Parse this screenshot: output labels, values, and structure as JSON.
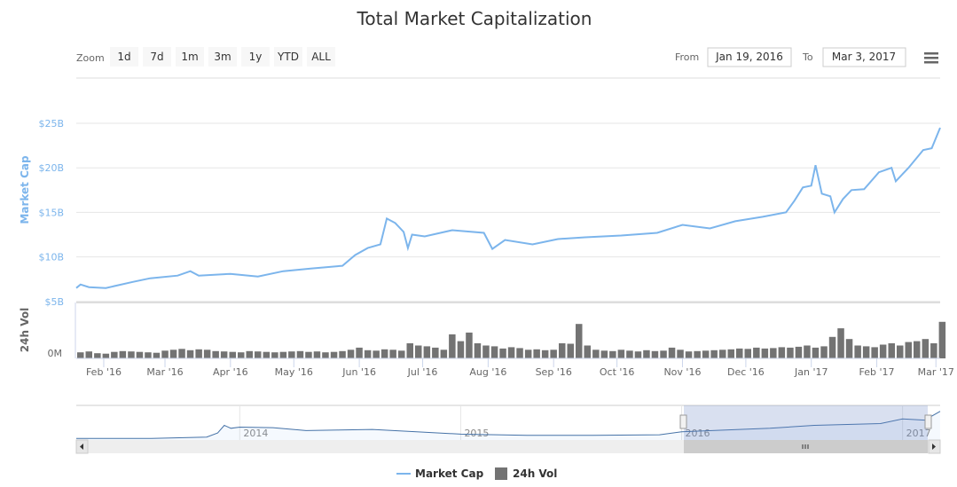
{
  "chart_data": {
    "type": "line",
    "title": "Total Market Capitalization",
    "zoom": {
      "label": "Zoom",
      "buttons": [
        "1d",
        "7d",
        "1m",
        "3m",
        "1y",
        "YTD",
        "ALL"
      ]
    },
    "range": {
      "from_label": "From",
      "from": "Jan 19, 2016",
      "to_label": "To",
      "to": "Mar 3, 2017"
    },
    "menu_icon": "hamburger-icon",
    "x_unit": "days since Jan 19, 2016",
    "x_range": [
      0,
      409
    ],
    "x_ticks": [
      {
        "day": 13,
        "label": "Feb '16"
      },
      {
        "day": 42,
        "label": "Mar '16"
      },
      {
        "day": 73,
        "label": "Apr '16"
      },
      {
        "day": 103,
        "label": "May '16"
      },
      {
        "day": 134,
        "label": "Jun '16"
      },
      {
        "day": 164,
        "label": "Jul '16"
      },
      {
        "day": 195,
        "label": "Aug '16"
      },
      {
        "day": 226,
        "label": "Sep '16"
      },
      {
        "day": 256,
        "label": "Oct '16"
      },
      {
        "day": 287,
        "label": "Nov '16"
      },
      {
        "day": 317,
        "label": "Dec '16"
      },
      {
        "day": 348,
        "label": "Jan '17"
      },
      {
        "day": 379,
        "label": "Feb '17"
      },
      {
        "day": 407,
        "label": "Mar '17"
      }
    ],
    "market_cap": {
      "name": "Market Cap",
      "ylabel": "Market Cap",
      "unit": "B",
      "color": "#7cb5ec",
      "ylim": [
        0,
        25
      ],
      "y_ticks": [
        {
          "v": 5,
          "label": "$5B"
        },
        {
          "v": 10,
          "label": "$10B"
        },
        {
          "v": 15,
          "label": "$15B"
        },
        {
          "v": 20,
          "label": "$20B"
        },
        {
          "v": 25,
          "label": "$25B"
        }
      ],
      "points": [
        [
          0,
          6.5
        ],
        [
          2,
          6.9
        ],
        [
          6,
          6.6
        ],
        [
          14,
          6.5
        ],
        [
          27,
          7.2
        ],
        [
          35,
          7.6
        ],
        [
          48,
          7.9
        ],
        [
          54,
          8.4
        ],
        [
          58,
          7.9
        ],
        [
          73,
          8.1
        ],
        [
          86,
          7.8
        ],
        [
          98,
          8.4
        ],
        [
          111,
          8.7
        ],
        [
          126,
          9.0
        ],
        [
          132,
          10.2
        ],
        [
          138,
          11
        ],
        [
          144,
          11.4
        ],
        [
          147,
          14.3
        ],
        [
          151,
          13.8
        ],
        [
          155,
          12.8
        ],
        [
          157,
          11
        ],
        [
          159,
          12.5
        ],
        [
          165,
          12.3
        ],
        [
          178,
          13
        ],
        [
          193,
          12.7
        ],
        [
          197,
          10.9
        ],
        [
          203,
          11.9
        ],
        [
          216,
          11.4
        ],
        [
          228,
          12
        ],
        [
          241,
          12.2
        ],
        [
          258,
          12.4
        ],
        [
          275,
          12.7
        ],
        [
          287,
          13.6
        ],
        [
          300,
          13.2
        ],
        [
          312,
          14
        ],
        [
          325,
          14.5
        ],
        [
          336,
          15
        ],
        [
          340,
          16.3
        ],
        [
          344,
          17.8
        ],
        [
          348,
          18
        ],
        [
          350,
          20.3
        ],
        [
          353,
          17.1
        ],
        [
          357,
          16.8
        ],
        [
          359,
          15
        ],
        [
          363,
          16.5
        ],
        [
          367,
          17.5
        ],
        [
          373,
          17.6
        ],
        [
          380,
          19.5
        ],
        [
          386,
          20
        ],
        [
          388,
          18.5
        ],
        [
          394,
          20
        ],
        [
          401,
          22
        ],
        [
          405,
          22.2
        ],
        [
          409,
          24.5
        ]
      ]
    },
    "volume": {
      "name": "24h Vol",
      "ylabel": "24h Vol",
      "unit": "M",
      "color": "#737373",
      "ylim": [
        0,
        1300
      ],
      "y_ticks": [
        {
          "v": 0,
          "label": "0M"
        }
      ],
      "bucket_days": 4,
      "values": [
        140,
        160,
        120,
        110,
        150,
        170,
        160,
        150,
        140,
        130,
        180,
        200,
        220,
        190,
        210,
        200,
        170,
        160,
        150,
        140,
        170,
        160,
        150,
        140,
        150,
        160,
        170,
        150,
        160,
        140,
        150,
        170,
        200,
        250,
        190,
        180,
        210,
        200,
        180,
        350,
        300,
        280,
        250,
        200,
        560,
        400,
        600,
        350,
        300,
        280,
        230,
        260,
        240,
        200,
        210,
        190,
        200,
        350,
        340,
        800,
        300,
        200,
        180,
        170,
        200,
        180,
        160,
        190,
        170,
        180,
        250,
        200,
        160,
        170,
        180,
        190,
        200,
        210,
        230,
        220,
        250,
        230,
        240,
        260,
        250,
        270,
        300,
        250,
        280,
        500,
        700,
        450,
        300,
        280,
        260,
        320,
        350,
        300,
        380,
        400,
        450,
        350,
        850
      ]
    },
    "navigator": {
      "year_labels": [
        "2014",
        "2015",
        "2016",
        "2017"
      ],
      "selection": [
        "Jan 19, 2016",
        "Mar 3, 2017"
      ],
      "points": [
        [
          2013.26,
          1.4
        ],
        [
          2013.6,
          1.3
        ],
        [
          2013.85,
          2.5
        ],
        [
          2013.9,
          6
        ],
        [
          2013.93,
          12.5
        ],
        [
          2013.96,
          10
        ],
        [
          2014.0,
          11
        ],
        [
          2014.15,
          10.5
        ],
        [
          2014.3,
          8
        ],
        [
          2014.45,
          8.5
        ],
        [
          2014.6,
          9
        ],
        [
          2014.8,
          7
        ],
        [
          2015.0,
          5
        ],
        [
          2015.3,
          4
        ],
        [
          2015.6,
          4
        ],
        [
          2015.9,
          4.5
        ],
        [
          2016.0,
          7
        ],
        [
          2016.4,
          10
        ],
        [
          2016.6,
          12.5
        ],
        [
          2016.9,
          14
        ],
        [
          2017.0,
          18
        ],
        [
          2017.1,
          17
        ],
        [
          2017.17,
          24.5
        ]
      ]
    }
  },
  "legend": [
    {
      "label": "Market Cap",
      "color": "#7cb5ec"
    },
    {
      "label": "24h Vol",
      "color": "#737373"
    }
  ]
}
